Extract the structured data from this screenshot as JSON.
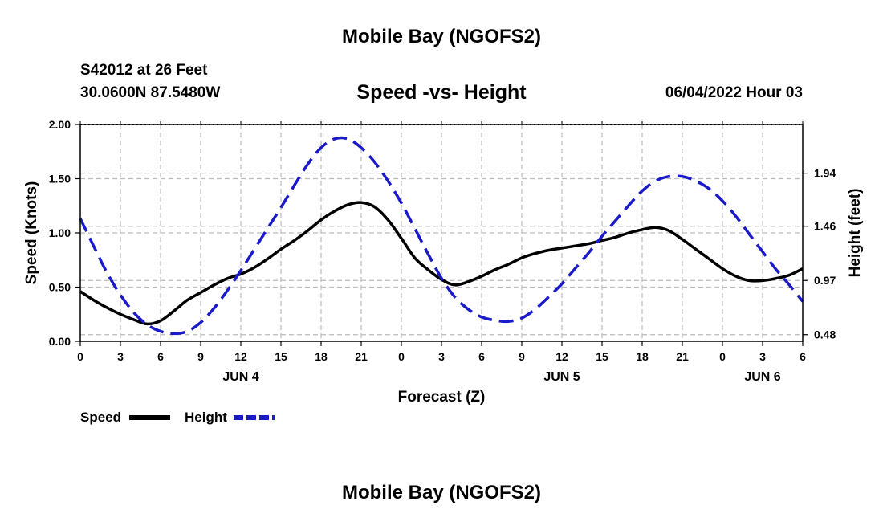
{
  "header": {
    "title": "Mobile Bay (NGOFS2)",
    "station": "S42012 at 26 Feet",
    "coords": "30.0600N  87.5480W",
    "subtitle": "Speed -vs- Height",
    "datetime": "06/04/2022 Hour 03",
    "footer_title": "Mobile Bay (NGOFS2)"
  },
  "chart_data": {
    "type": "line",
    "title": "Speed -vs- Height",
    "xlabel": "Forecast (Z)",
    "ylabel": "Speed (Knots)",
    "y2label": "Height (feet)",
    "x_hours_range": [
      0,
      54
    ],
    "x_tick_every_hours": 3,
    "x_tick_labels": [
      "0",
      "3",
      "6",
      "9",
      "12",
      "15",
      "18",
      "21",
      "0",
      "3",
      "6",
      "9",
      "12",
      "15",
      "18",
      "21",
      "0",
      "3",
      "6"
    ],
    "date_labels": [
      {
        "text": "JUN 4",
        "hour": 12
      },
      {
        "text": "JUN 5",
        "hour": 36
      },
      {
        "text": "JUN 6",
        "hour": 51
      }
    ],
    "ylim": [
      0,
      2.0
    ],
    "y_ticks": [
      0.0,
      0.5,
      1.0,
      1.5,
      2.0
    ],
    "y_tick_labels": [
      "0.00",
      "0.50",
      "1.00",
      "1.50",
      "2.00"
    ],
    "y2lim": [
      0.42,
      2.38
    ],
    "y2_ticks": [
      0.48,
      0.97,
      1.46,
      1.94
    ],
    "y2_tick_labels": [
      "0.48",
      "0.97",
      "1.46",
      "1.94"
    ],
    "grid": true,
    "colors": {
      "speed": "#000000",
      "height": "#1a1ac8",
      "grid": "#bbbbbb"
    },
    "series": [
      {
        "name": "Speed",
        "axis": "left",
        "style": "solid",
        "x": [
          0,
          1,
          2,
          3,
          4,
          5,
          6,
          7,
          8,
          9,
          10,
          11,
          12,
          13,
          14,
          15,
          16,
          17,
          18,
          19,
          20,
          21,
          22,
          23,
          24,
          25,
          26,
          27,
          28,
          29,
          30,
          31,
          32,
          33,
          34,
          35,
          36,
          37,
          38,
          39,
          40,
          41,
          42,
          43,
          44,
          45,
          46,
          47,
          48,
          49,
          50,
          51,
          52,
          53,
          54
        ],
        "values": [
          0.46,
          0.38,
          0.31,
          0.25,
          0.2,
          0.16,
          0.19,
          0.28,
          0.38,
          0.45,
          0.52,
          0.58,
          0.62,
          0.68,
          0.76,
          0.85,
          0.93,
          1.02,
          1.12,
          1.2,
          1.26,
          1.28,
          1.24,
          1.12,
          0.95,
          0.77,
          0.66,
          0.57,
          0.52,
          0.55,
          0.6,
          0.66,
          0.71,
          0.77,
          0.81,
          0.84,
          0.86,
          0.88,
          0.9,
          0.93,
          0.96,
          1.0,
          1.03,
          1.05,
          1.02,
          0.94,
          0.85,
          0.76,
          0.67,
          0.6,
          0.56,
          0.56,
          0.58,
          0.61,
          0.67
        ]
      },
      {
        "name": "Height",
        "axis": "right",
        "style": "dashed",
        "x": [
          0,
          1,
          2,
          3,
          4,
          5,
          6,
          7,
          8,
          9,
          10,
          11,
          12,
          13,
          14,
          15,
          16,
          17,
          18,
          19,
          20,
          21,
          22,
          23,
          24,
          25,
          26,
          27,
          28,
          29,
          30,
          31,
          32,
          33,
          34,
          35,
          36,
          37,
          38,
          39,
          40,
          41,
          42,
          43,
          44,
          45,
          46,
          47,
          48,
          49,
          50,
          51,
          52,
          53,
          54
        ],
        "values": [
          1.53,
          1.28,
          1.04,
          0.84,
          0.68,
          0.57,
          0.51,
          0.49,
          0.51,
          0.59,
          0.72,
          0.88,
          1.06,
          1.25,
          1.44,
          1.63,
          1.83,
          2.02,
          2.17,
          2.25,
          2.25,
          2.17,
          2.04,
          1.87,
          1.67,
          1.44,
          1.21,
          0.99,
          0.82,
          0.71,
          0.64,
          0.61,
          0.6,
          0.63,
          0.71,
          0.82,
          0.94,
          1.08,
          1.22,
          1.37,
          1.51,
          1.65,
          1.78,
          1.87,
          1.91,
          1.91,
          1.87,
          1.8,
          1.69,
          1.55,
          1.39,
          1.23,
          1.07,
          0.93,
          0.78
        ]
      }
    ]
  },
  "legend": {
    "speed_label": "Speed",
    "height_label": "Height"
  }
}
